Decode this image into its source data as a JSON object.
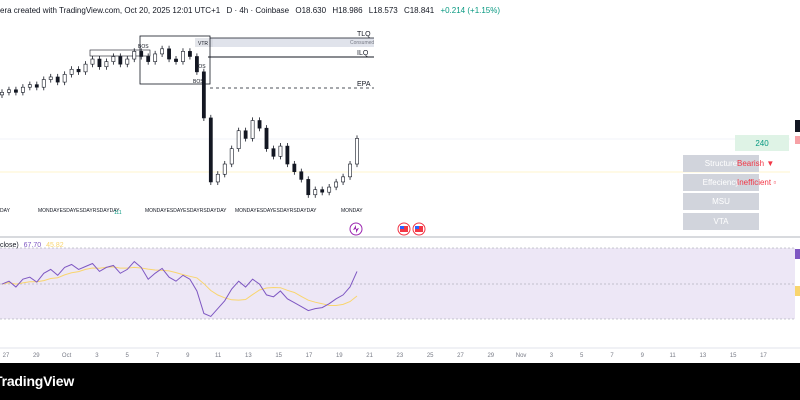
{
  "caption": {
    "created": "era created with TradingView.com, Oct 20, 2025 12:01 UTC+1",
    "symbol": "D · 4h · Coinbase",
    "open": "O18.630",
    "high": "H18.986",
    "low": "L18.573",
    "close": "C18.841",
    "change": "+0.214 (+1.15%)"
  },
  "levels": {
    "tlq": "TLQ",
    "ilq": "ILQ",
    "epa": "EPA",
    "vtr": "VTR",
    "bos1": "BOS",
    "bos2": "BOS",
    "bos3": "BOS",
    "consumed": "Consumed"
  },
  "session_labels": {
    "group1": "MONDAYESDAYESDAYRSDAYDAY",
    "group2": "MONDAYESDAYESDAYRSDAYDAY",
    "group3": "MONDAYESDAYESDAYRSDAYDAY",
    "monday": "MONDAY",
    "day": "DAY",
    "marker": "111"
  },
  "panel": {
    "price_label": "240",
    "rows": [
      {
        "label": "Structure",
        "value": "Bearish ▼",
        "color": "#f23645"
      },
      {
        "label": "Effeciency",
        "value": "Inefficient ▫",
        "color": "#f23645"
      },
      {
        "label": "MSU",
        "value": "",
        "color": ""
      },
      {
        "label": "VTA",
        "value": "",
        "color": ""
      }
    ]
  },
  "rsi": {
    "label": "close)",
    "value1": "67.70",
    "value2": "45.82"
  },
  "xaxis": {
    "labels": [
      "27",
      "29",
      "Oct",
      "3",
      "5",
      "7",
      "9",
      "11",
      "13",
      "15",
      "17",
      "19",
      "21",
      "23",
      "25",
      "27",
      "29",
      "Nov",
      "3",
      "5",
      "7",
      "9",
      "11",
      "13",
      "15",
      "17"
    ]
  },
  "footer": {
    "logo": "TradingView"
  },
  "colors": {
    "up": "#089981",
    "down": "#f23645",
    "candle": "#131722",
    "rsi_line": "#7e57c2",
    "rsi_ma": "#f9d56e",
    "rsi_band": "#ede7f6"
  },
  "chart_data": {
    "type": "line",
    "series": [
      {
        "name": "",
        "values": [
          18.0,
          18.1,
          18.0,
          18.2,
          18.3,
          18.2,
          18.5,
          18.6,
          18.4,
          18.7,
          18.9,
          18.8,
          19.1,
          19.3,
          19.0,
          19.2,
          19.4,
          19.1,
          19.3,
          19.6,
          19.4,
          19.2,
          19.5,
          19.7,
          19.3,
          19.2,
          19.6,
          19.4,
          18.8,
          17.0,
          14.5,
          14.8,
          15.2,
          15.8,
          16.5,
          16.2,
          16.9,
          16.6,
          15.8,
          15.5,
          15.9,
          15.2,
          14.9,
          14.6,
          14.0,
          14.2,
          14.1,
          14.3,
          14.5,
          14.7,
          15.2,
          16.2
        ]
      },
      {
        "name": "",
        "values": [
          55,
          58,
          52,
          60,
          62,
          57,
          66,
          70,
          64,
          72,
          75,
          70,
          73,
          76,
          68,
          72,
          74,
          66,
          70,
          78,
          72,
          60,
          66,
          71,
          62,
          58,
          64,
          60,
          48,
          25,
          22,
          30,
          38,
          50,
          58,
          52,
          60,
          55,
          44,
          42,
          48,
          40,
          36,
          32,
          28,
          30,
          31,
          35,
          40,
          44,
          52,
          68
        ]
      }
    ]
  }
}
